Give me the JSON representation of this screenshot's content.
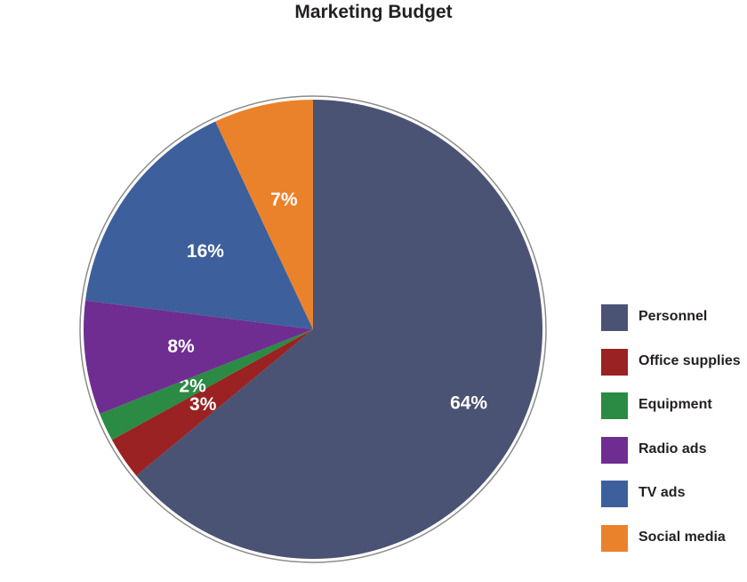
{
  "chart_data": {
    "type": "pie",
    "title": "Marketing Budget",
    "slices": [
      {
        "label": "Personnel",
        "value": 64,
        "display": "64%",
        "color": "#4a5374"
      },
      {
        "label": "Office supplies",
        "value": 3,
        "display": "3%",
        "color": "#9a2222"
      },
      {
        "label": "Equipment",
        "value": 2,
        "display": "2%",
        "color": "#2b8a43"
      },
      {
        "label": "Radio ads",
        "value": 8,
        "display": "8%",
        "color": "#6f2d91"
      },
      {
        "label": "TV ads",
        "value": 16,
        "display": "16%",
        "color": "#3d5f9b"
      },
      {
        "label": "Social media",
        "value": 7,
        "display": "7%",
        "color": "#ea822b"
      }
    ],
    "legend_position": "right",
    "start": "top, clockwise"
  }
}
